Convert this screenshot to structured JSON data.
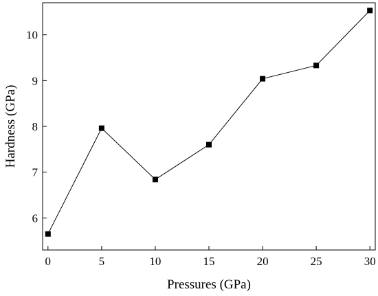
{
  "chart_data": {
    "type": "line",
    "title": "",
    "xlabel": "Pressures (GPa)",
    "ylabel": "Hardness (GPa)",
    "x": [
      0,
      5,
      10,
      15,
      20,
      25,
      30
    ],
    "series": [
      {
        "values": [
          5.65,
          7.96,
          6.84,
          7.6,
          9.04,
          9.33,
          10.53
        ],
        "marker": "square",
        "color": "#000000"
      }
    ],
    "xlim": [
      -0.5,
      30.5
    ],
    "ylim": [
      5.3,
      10.7
    ],
    "xticks": [
      0,
      5,
      10,
      15,
      20,
      25,
      30
    ],
    "xtick_labels": [
      "0",
      "5",
      "10",
      "15",
      "20",
      "25",
      "30"
    ],
    "yticks": [
      6,
      7,
      8,
      9,
      10
    ],
    "ytick_labels": [
      "6",
      "7",
      "8",
      "9",
      "10"
    ],
    "grid": false,
    "legend": "none"
  }
}
